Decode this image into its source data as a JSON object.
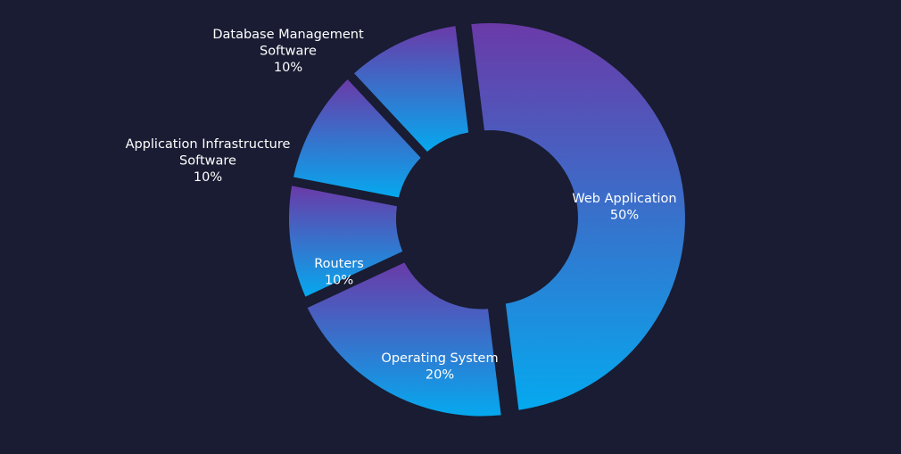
{
  "chart_data": {
    "type": "pie",
    "style": "donut",
    "background": "#191c32",
    "gradient": {
      "start": "#6a3aa8",
      "end": "#05a9ef"
    },
    "label_color": "#ffffff",
    "slices": [
      {
        "label_lines": [
          "Web Application"
        ],
        "percent_label": "50%",
        "value": 50
      },
      {
        "label_lines": [
          "Operating System"
        ],
        "percent_label": "20%",
        "value": 20
      },
      {
        "label_lines": [
          "Routers"
        ],
        "percent_label": "10%",
        "value": 10
      },
      {
        "label_lines": [
          "Application Infrastructure",
          "Software"
        ],
        "percent_label": "10%",
        "value": 10
      },
      {
        "label_lines": [
          "Database Management",
          "Software"
        ],
        "percent_label": "10%",
        "value": 10
      }
    ]
  }
}
